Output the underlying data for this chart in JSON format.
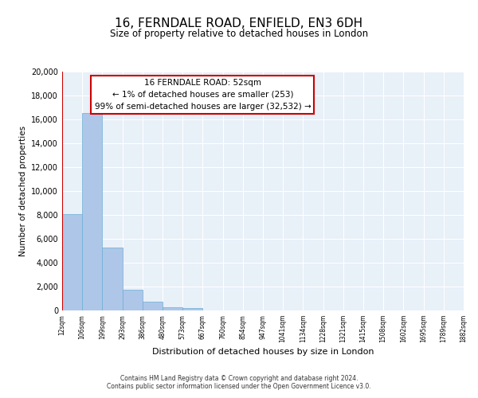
{
  "title": "16, FERNDALE ROAD, ENFIELD, EN3 6DH",
  "subtitle": "Size of property relative to detached houses in London",
  "xlabel": "Distribution of detached houses by size in London",
  "ylabel": "Number of detached properties",
  "bin_labels": [
    "12sqm",
    "106sqm",
    "199sqm",
    "293sqm",
    "386sqm",
    "480sqm",
    "573sqm",
    "667sqm",
    "760sqm",
    "854sqm",
    "947sqm",
    "1041sqm",
    "1134sqm",
    "1228sqm",
    "1321sqm",
    "1415sqm",
    "1508sqm",
    "1602sqm",
    "1695sqm",
    "1789sqm",
    "1882sqm"
  ],
  "bar_values": [
    8100,
    16500,
    5300,
    1750,
    750,
    250,
    200,
    0,
    0,
    0,
    0,
    0,
    0,
    0,
    0,
    0,
    0,
    0,
    0,
    0
  ],
  "bar_color": "#aec6e8",
  "bar_edge_color": "#6baed6",
  "property_line_x": 0,
  "property_line_color": "#cc0000",
  "annotation_box_text": "16 FERNDALE ROAD: 52sqm\n← 1% of detached houses are smaller (253)\n99% of semi-detached houses are larger (32,532) →",
  "annotation_box_color": "#cc0000",
  "ylim": [
    0,
    20000
  ],
  "yticks": [
    0,
    2000,
    4000,
    6000,
    8000,
    10000,
    12000,
    14000,
    16000,
    18000,
    20000
  ],
  "background_color": "#e8f0f8",
  "footer_line1": "Contains HM Land Registry data © Crown copyright and database right 2024.",
  "footer_line2": "Contains public sector information licensed under the Open Government Licence v3.0."
}
